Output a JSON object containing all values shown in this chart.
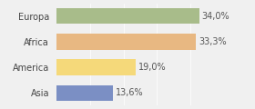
{
  "categories": [
    "Europa",
    "Africa",
    "America",
    "Asia"
  ],
  "values": [
    34.0,
    33.3,
    19.0,
    13.6
  ],
  "labels": [
    "34,0%",
    "33,3%",
    "19,0%",
    "13,6%"
  ],
  "colors": [
    "#a8bc8a",
    "#e8b882",
    "#f5d97a",
    "#7b8fc4"
  ],
  "xlim": [
    0,
    100
  ],
  "background_color": "#f0f0f0",
  "bar_height": 0.62,
  "label_fontsize": 7.0,
  "category_fontsize": 7.0
}
